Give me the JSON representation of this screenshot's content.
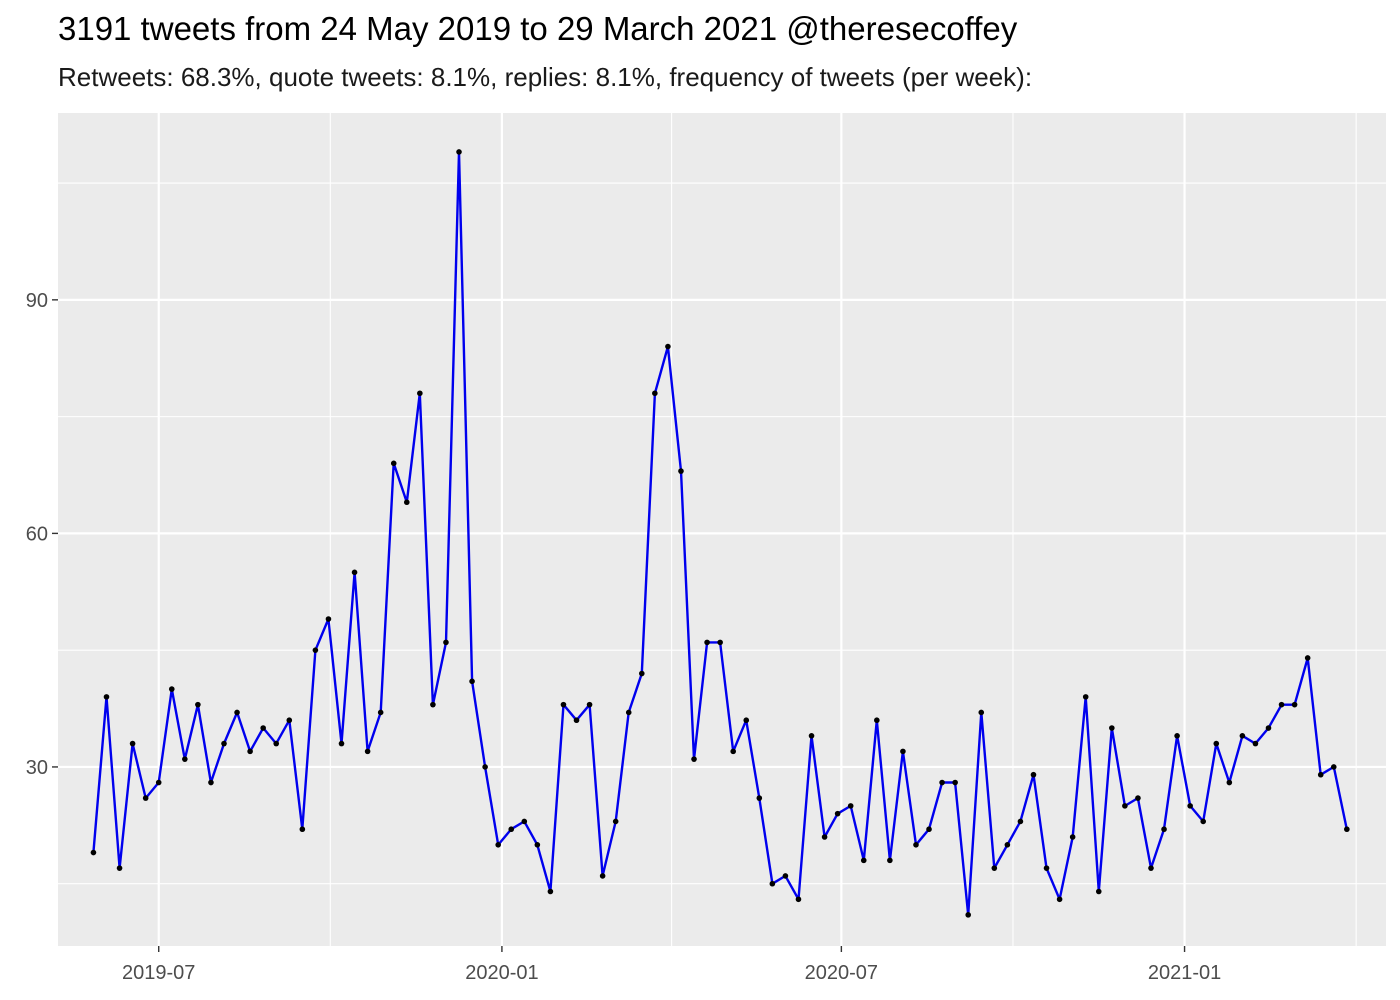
{
  "header": {
    "title": "3191 tweets from 24 May 2019 to 29 March 2021 @theresecoffey",
    "subtitle": "Retweets: 68.3%, quote tweets: 8.1%, replies: 8.1%, frequency of tweets (per week):"
  },
  "chart_data": {
    "type": "line",
    "title": "3191 tweets from 24 May 2019 to 29 March 2021 @theresecoffey",
    "subtitle": "Retweets: 68.3%, quote tweets: 8.1%, replies: 8.1%, frequency of tweets (per week):",
    "xlabel": "",
    "ylabel": "",
    "x_tick_labels": [
      "2019-07",
      "2020-01",
      "2020-07",
      "2021-01"
    ],
    "y_tick_labels": [
      "30",
      "60",
      "90"
    ],
    "x_start": "2019-05-27",
    "x_interval_days": 7,
    "xlim": [
      "2019-05-08",
      "2021-04-19"
    ],
    "ylim": [
      7,
      114
    ],
    "grid": true,
    "line_color": "#0000ee",
    "point_color": "#000000",
    "panel_background": "#ebebeb",
    "series": [
      {
        "values": [
          19,
          39,
          17,
          33,
          26,
          28,
          40,
          31,
          38,
          28,
          33,
          37,
          32,
          35,
          33,
          36,
          22,
          45,
          49,
          33,
          55,
          32,
          37,
          69,
          64,
          78,
          38,
          46,
          109,
          41,
          30,
          20,
          22,
          23,
          20,
          14,
          38,
          36,
          38,
          16,
          23,
          37,
          42,
          78,
          84,
          68,
          31,
          46,
          46,
          32,
          36,
          26,
          15,
          16,
          13,
          34,
          21,
          24,
          25,
          18,
          36,
          18,
          32,
          20,
          22,
          28,
          28,
          11,
          37,
          17,
          20,
          23,
          29,
          17,
          13,
          21,
          39,
          14,
          35,
          25,
          26,
          17,
          22,
          34,
          25,
          23,
          33,
          28,
          34,
          33,
          35,
          38,
          38,
          44,
          29,
          30,
          22
        ]
      }
    ]
  }
}
